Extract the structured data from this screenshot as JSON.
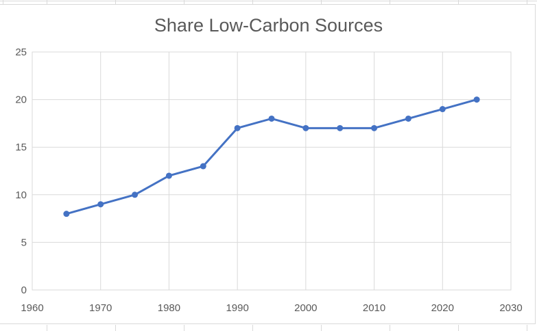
{
  "chart_data": {
    "type": "line",
    "title": "Share Low-Carbon Sources",
    "xlabel": "",
    "ylabel": "",
    "x": [
      1965,
      1970,
      1975,
      1980,
      1985,
      1990,
      1995,
      2000,
      2005,
      2010,
      2015,
      2020,
      2025
    ],
    "values": [
      8,
      9,
      10,
      12,
      13,
      17,
      18,
      17,
      17,
      17,
      18,
      19,
      20
    ],
    "xlim": [
      1960,
      2030
    ],
    "ylim": [
      0,
      25
    ],
    "x_ticks": [
      1960,
      1970,
      1980,
      1990,
      2000,
      2010,
      2020,
      2030
    ],
    "y_ticks": [
      0,
      5,
      10,
      15,
      20,
      25
    ],
    "grid": true,
    "legend": false,
    "marker": "circle",
    "colors": {
      "series": "#4472C4",
      "gridline": "#d9d9d9",
      "plot_border": "#d9d9d9",
      "axis_text": "#595959",
      "title_text": "#595959",
      "chart_background": "#ffffff"
    }
  }
}
